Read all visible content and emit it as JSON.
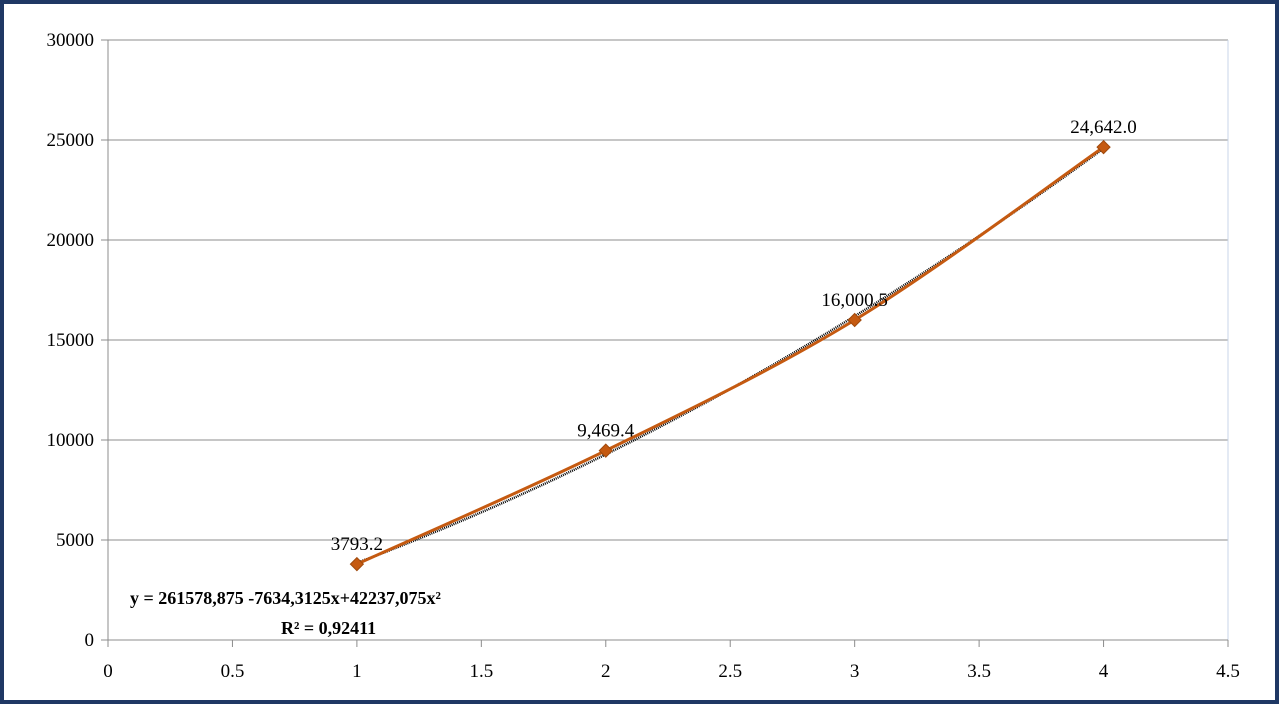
{
  "chart_data": {
    "type": "scatter",
    "title": "",
    "xlabel": "",
    "ylabel": "",
    "xlim": [
      0,
      4.5
    ],
    "ylim": [
      0,
      30000
    ],
    "x_ticks": [
      "0",
      "0.5",
      "1",
      "1.5",
      "2",
      "2.5",
      "3",
      "3.5",
      "4",
      "4.5"
    ],
    "y_ticks": [
      "0",
      "5000",
      "10000",
      "15000",
      "20000",
      "25000",
      "30000"
    ],
    "grid": "horizontal",
    "series": [
      {
        "x": [
          1,
          2,
          3,
          4
        ],
        "y": [
          3793.2,
          9469.4,
          16000.5,
          24642.0
        ],
        "labels": [
          "3793.2",
          "9,469.4",
          "16,000.5",
          "24,642.0"
        ],
        "color": "#c55a11",
        "marker": "diamond"
      }
    ],
    "trendline": {
      "type": "polynomial-2",
      "color": "#000000",
      "equation": "y = 261578,875 -7634,3125x+42237,075x²",
      "r_squared": "R² = 0,92411"
    }
  }
}
